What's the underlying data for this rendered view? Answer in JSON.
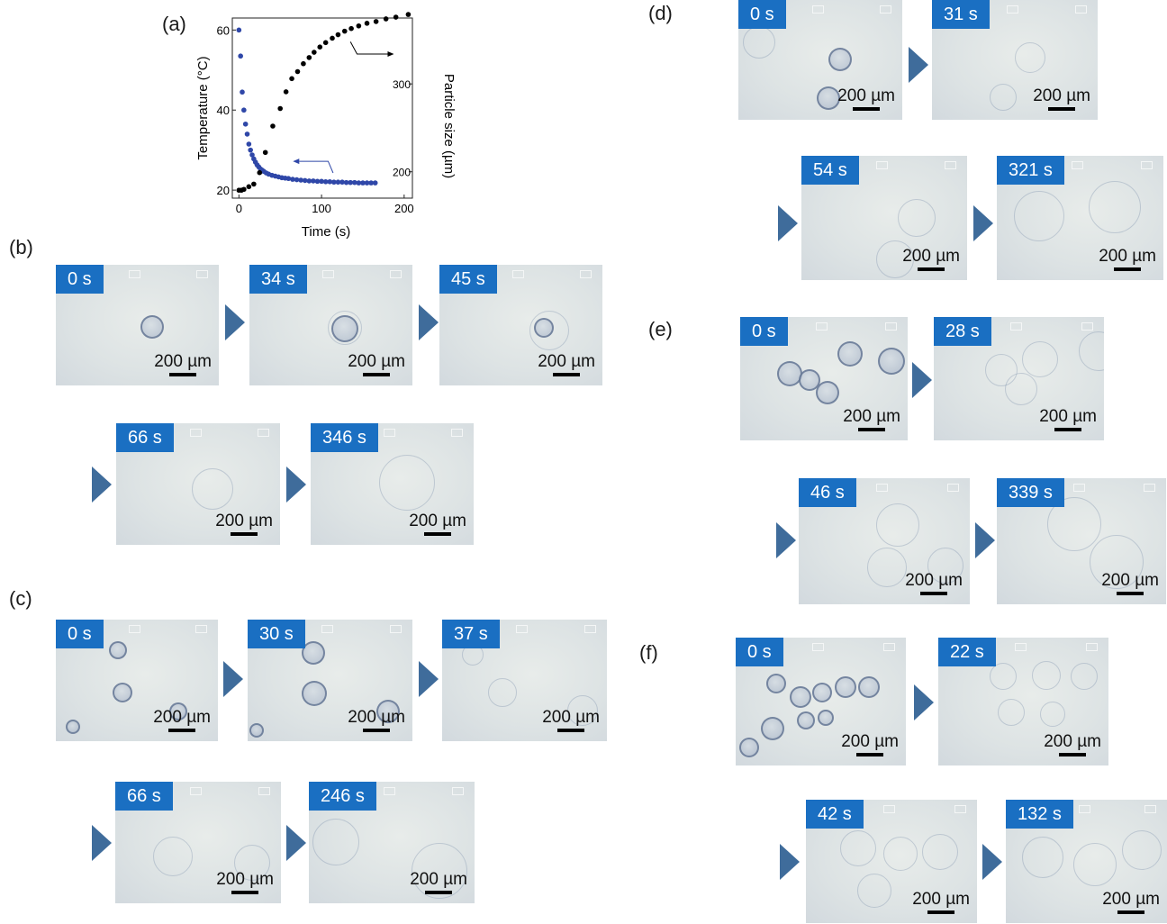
{
  "panel_labels": {
    "a": "(a)",
    "b": "(b)",
    "c": "(c)",
    "d": "(d)",
    "e": "(e)",
    "f": "(f)"
  },
  "scale_bar_label": "200 µm",
  "colors": {
    "badge": "#1a6fc2",
    "arrow": "#3f6c9b",
    "temperature_series": "#2f47a8",
    "size_series": "#000000"
  },
  "icons": {
    "step_arrow": "right-triangle-icon"
  },
  "chart_data": {
    "type": "scatter",
    "title": "",
    "xlabel": "Time (s)",
    "ylabel_left": "Temperature (°C)",
    "ylabel_right": "Particle size (µm)",
    "xlim": [
      -8,
      210
    ],
    "ylim_left": [
      18,
      63
    ],
    "ylim_right": [
      170,
      375
    ],
    "x_ticks": [
      "0",
      "100",
      "200"
    ],
    "y_ticks_left": [
      "20",
      "40",
      "60"
    ],
    "y_ticks_right": [
      "200",
      "300"
    ],
    "grid": false,
    "series": [
      {
        "axis": "left",
        "color": "#2f47a8",
        "x": [
          0,
          2,
          4,
          6,
          8,
          10,
          12,
          14,
          16,
          18,
          20,
          22,
          24,
          26,
          28,
          30,
          33,
          36,
          40,
          44,
          48,
          52,
          56,
          60,
          65,
          70,
          75,
          80,
          85,
          90,
          95,
          100,
          105,
          110,
          115,
          120,
          125,
          130,
          135,
          140,
          145,
          150,
          155,
          160,
          165
        ],
        "y": [
          60,
          53.5,
          44.5,
          40,
          36.5,
          34,
          31.5,
          30,
          28.8,
          27.8,
          27,
          26.3,
          25.8,
          25.3,
          25,
          24.7,
          24.3,
          24,
          23.7,
          23.5,
          23.3,
          23.1,
          23,
          22.9,
          22.7,
          22.6,
          22.5,
          22.4,
          22.3,
          22.3,
          22.2,
          22.2,
          22.1,
          22.1,
          22,
          22,
          22,
          21.9,
          21.9,
          21.9,
          21.8,
          21.8,
          21.8,
          21.8,
          21.8
        ]
      },
      {
        "axis": "right",
        "color": "#000000",
        "x": [
          0,
          3,
          6,
          12,
          18,
          25,
          32,
          41,
          50,
          57,
          64,
          71,
          78,
          85,
          91,
          98,
          105,
          113,
          120,
          128,
          136,
          145,
          155,
          166,
          178,
          190,
          205
        ],
        "y": [
          179,
          179,
          180,
          183,
          186,
          199,
          222,
          252,
          272,
          291,
          306,
          314,
          323,
          330,
          336,
          342,
          347,
          352,
          356,
          360,
          363,
          366,
          369,
          371,
          374,
          376,
          379
        ]
      }
    ],
    "annotations": [
      {
        "target": "left",
        "color": "#2f47a8"
      },
      {
        "target": "right",
        "color": "#000000"
      }
    ]
  },
  "panels": {
    "b": [
      {
        "time": "0 s"
      },
      {
        "time": "34 s"
      },
      {
        "time": "45 s"
      },
      {
        "time": "66 s"
      },
      {
        "time": "346 s"
      }
    ],
    "c": [
      {
        "time": "0 s"
      },
      {
        "time": "30 s"
      },
      {
        "time": "37 s"
      },
      {
        "time": "66 s"
      },
      {
        "time": "246 s"
      }
    ],
    "d": [
      {
        "time": "0 s"
      },
      {
        "time": "31 s"
      },
      {
        "time": "54 s"
      },
      {
        "time": "321 s"
      }
    ],
    "e": [
      {
        "time": "0 s"
      },
      {
        "time": "28 s"
      },
      {
        "time": "46 s"
      },
      {
        "time": "339 s"
      }
    ],
    "f": [
      {
        "time": "0 s"
      },
      {
        "time": "22 s"
      },
      {
        "time": "42 s"
      },
      {
        "time": "132 s"
      }
    ]
  }
}
